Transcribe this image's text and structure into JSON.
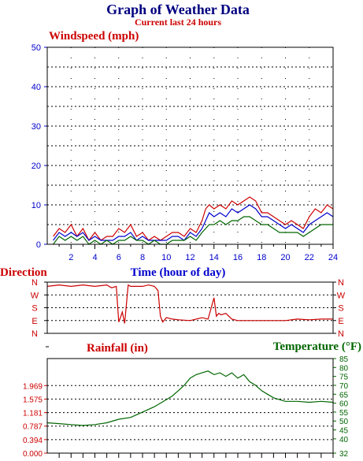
{
  "header": {
    "title": "Graph of Weather Data",
    "subtitle": "Current last 24 hours"
  },
  "colors": {
    "title": "#000080",
    "red": "#cc0000",
    "blue": "#0000cc",
    "green": "#006600",
    "grid": "#000000"
  },
  "chart_data": [
    {
      "id": "windspeed",
      "type": "line",
      "title": "Windspeed (mph)",
      "xlabel": "Time (hour of day)",
      "ylabel": "",
      "xlim": [
        0,
        24
      ],
      "ylim": [
        0,
        50
      ],
      "x_ticks": [
        2,
        4,
        6,
        8,
        10,
        12,
        14,
        16,
        18,
        20,
        22,
        24
      ],
      "y_ticks": [
        0,
        10,
        20,
        30,
        40,
        50
      ],
      "grid": true,
      "series": [
        {
          "color": "#cc0000",
          "x": [
            0.5,
            1,
            1.5,
            2,
            2.5,
            3,
            3.5,
            4,
            4.5,
            5,
            5.5,
            6,
            6.5,
            7,
            7.5,
            8,
            8.5,
            9,
            9.5,
            10,
            10.5,
            11,
            11.5,
            12,
            12.5,
            13,
            13.3,
            13.6,
            14,
            14.5,
            15,
            15.5,
            16,
            16.5,
            17,
            17.5,
            18,
            18.5,
            19,
            19.5,
            20,
            20.5,
            21,
            21.5,
            22,
            22.5,
            23,
            23.5,
            24
          ],
          "y": [
            2,
            4,
            3,
            5,
            2,
            4,
            1,
            3,
            1,
            2,
            2,
            4,
            3,
            5,
            2,
            3,
            1,
            2,
            1,
            2,
            3,
            3,
            2,
            4,
            3,
            6,
            9,
            10,
            9,
            10,
            9,
            11,
            10,
            11,
            12,
            11,
            8,
            8,
            7,
            6,
            5,
            6,
            5,
            4,
            7,
            9,
            8,
            10,
            9
          ]
        },
        {
          "color": "#0000cc",
          "x": [
            0.5,
            1,
            1.5,
            2,
            2.5,
            3,
            3.5,
            4,
            4.5,
            5,
            5.5,
            6,
            6.5,
            7,
            7.5,
            8,
            8.5,
            9,
            9.5,
            10,
            10.5,
            11,
            11.5,
            12,
            12.5,
            13,
            13.3,
            13.6,
            14,
            14.5,
            15,
            15.5,
            16,
            16.5,
            17,
            17.5,
            18,
            18.5,
            19,
            19.5,
            20,
            20.5,
            21,
            21.5,
            22,
            22.5,
            23,
            23.5,
            24
          ],
          "y": [
            1,
            3,
            2,
            3,
            2,
            3,
            1,
            2,
            1,
            1,
            1,
            2,
            2,
            3,
            1,
            2,
            1,
            1,
            1,
            1,
            2,
            2,
            1,
            3,
            2,
            4,
            6,
            8,
            7,
            8,
            7,
            9,
            8,
            9,
            10,
            9,
            7,
            7,
            6,
            5,
            4,
            5,
            4,
            3,
            5,
            6,
            7,
            8,
            7
          ]
        },
        {
          "color": "#006600",
          "x": [
            0.5,
            1,
            1.5,
            2,
            2.5,
            3,
            3.5,
            4,
            4.5,
            5,
            5.5,
            6,
            6.5,
            7,
            7.5,
            8,
            8.5,
            9,
            9.5,
            10,
            10.5,
            11,
            11.5,
            12,
            12.5,
            13,
            13.3,
            13.6,
            14,
            14.5,
            15,
            15.5,
            16,
            16.5,
            17,
            17.5,
            18,
            18.5,
            19,
            19.5,
            20,
            20.5,
            21,
            21.5,
            22,
            22.5,
            23,
            23.5,
            24
          ],
          "y": [
            0,
            2,
            1,
            2,
            1,
            2,
            0,
            1,
            0,
            1,
            0,
            1,
            1,
            2,
            1,
            1,
            0,
            1,
            0,
            0,
            1,
            1,
            1,
            2,
            1,
            3,
            4,
            5,
            5,
            6,
            5,
            6,
            6,
            7,
            7,
            6,
            5,
            5,
            4,
            3,
            3,
            3,
            3,
            2,
            3,
            4,
            5,
            5,
            5
          ]
        }
      ]
    },
    {
      "id": "direction",
      "type": "line",
      "title": "Direction",
      "xlim": [
        0,
        24
      ],
      "y_categories": [
        "N",
        "W",
        "S",
        "E",
        "N"
      ],
      "grid": true,
      "series": [
        {
          "color": "#cc0000",
          "x": [
            0,
            1,
            2,
            3,
            4,
            5,
            5.4,
            5.8,
            6,
            6.1,
            6.3,
            6.5,
            6.8,
            7,
            8,
            8.5,
            9,
            9.3,
            9.5,
            9.7,
            10,
            10.5,
            11,
            12,
            13,
            13.5,
            14,
            14.2,
            14.4,
            14.6,
            15,
            15.5,
            16,
            17,
            18,
            19,
            20,
            21,
            22,
            23,
            24
          ],
          "y": [
            330,
            340,
            330,
            340,
            330,
            340,
            320,
            330,
            80,
            100,
            150,
            70,
            340,
            330,
            330,
            340,
            330,
            300,
            120,
            80,
            110,
            100,
            95,
            90,
            110,
            100,
            250,
            120,
            140,
            130,
            140,
            100,
            90,
            90,
            90,
            90,
            90,
            100,
            95,
            100,
            100
          ]
        }
      ]
    },
    {
      "id": "rain_temp",
      "type": "line",
      "title": "Rainfall (in)",
      "title_right": "Temperature (°F)",
      "xlim": [
        0,
        24
      ],
      "ylim": [
        0,
        2.756
      ],
      "y_ticks": [
        "0.000",
        "0.394",
        "0.787",
        "1.181",
        "1.575",
        "1.969"
      ],
      "y2lim": [
        32,
        85
      ],
      "y2_ticks": [
        32,
        40,
        45,
        50,
        55,
        60,
        65,
        70,
        75,
        80,
        85
      ],
      "grid": true,
      "series": [
        {
          "color": "#006600",
          "axis": "right",
          "x": [
            0,
            1,
            2,
            3,
            4,
            5,
            6,
            7,
            8,
            9,
            9.5,
            10,
            10.5,
            11,
            11.5,
            12,
            12.5,
            13,
            13.5,
            14,
            14.5,
            15,
            15.5,
            16,
            16.5,
            17,
            17.5,
            18,
            18.5,
            19,
            19.5,
            20,
            20.5,
            21,
            22,
            23,
            24
          ],
          "y": [
            49,
            48.5,
            48,
            47.5,
            48,
            49,
            51,
            52,
            55,
            58,
            60,
            62,
            64,
            67,
            70,
            74,
            76,
            77,
            78,
            76,
            77,
            75,
            77,
            74,
            76,
            72,
            70,
            67,
            65,
            63,
            62,
            61,
            61,
            61,
            60.5,
            61,
            60.5
          ]
        }
      ]
    }
  ]
}
